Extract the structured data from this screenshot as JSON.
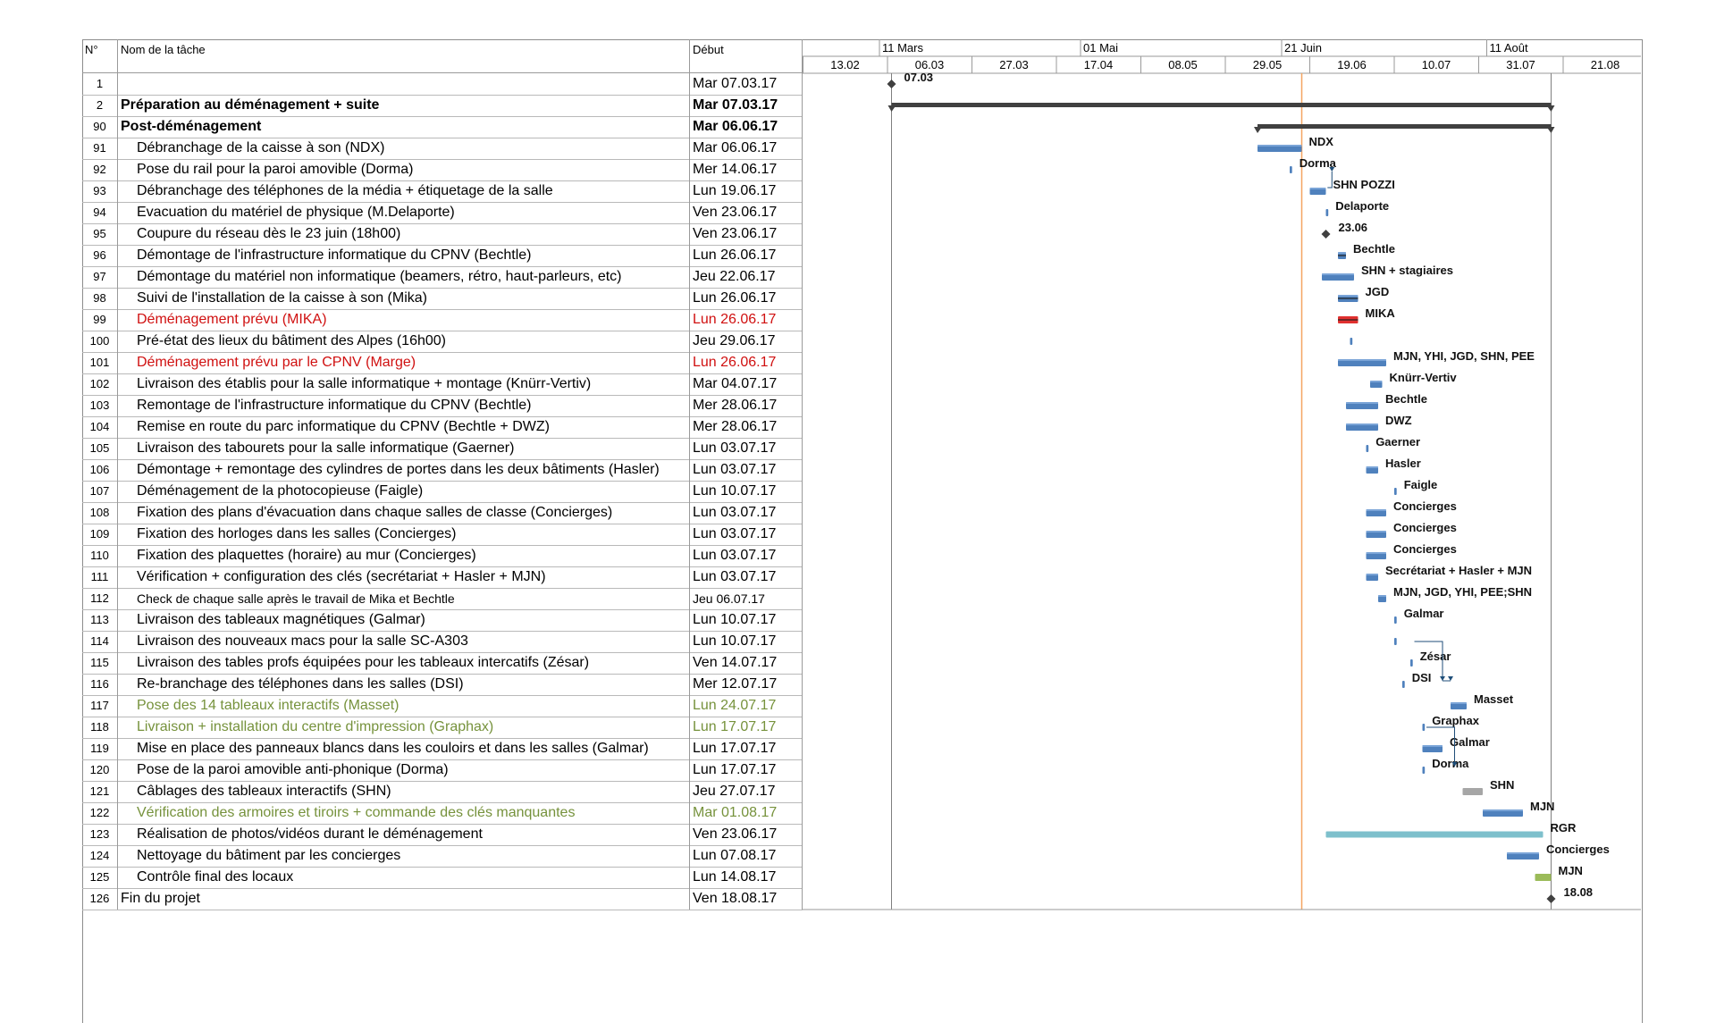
{
  "headers": {
    "num": "N°",
    "name": "Nom de la tâche",
    "start": "Début"
  },
  "timescale": {
    "top": [
      {
        "label": "11 Mars",
        "day": -2
      },
      {
        "label": "01 Mai",
        "day": 48
      },
      {
        "label": "21 Juin",
        "day": 98
      },
      {
        "label": "11 Août",
        "day": 149
      }
    ],
    "bottom": [
      "13.02",
      "06.03",
      "27.03",
      "17.04",
      "08.05",
      "29.05",
      "19.06",
      "10.07",
      "31.07",
      "21.08"
    ],
    "bottom_days": [
      -21,
      0,
      21,
      42,
      63,
      84,
      105,
      126,
      147,
      168
    ],
    "today_day": 103,
    "project_start_day": 1,
    "project_end_day": 165
  },
  "colors": {
    "task": "#4f81bd",
    "summary": "#404040",
    "critical": "#e0302f",
    "today": "#f4a460",
    "long": "#7ec0cc",
    "done": "#9bbb59",
    "gray": "#a6a6a6"
  },
  "tasks": [
    {
      "num": "1",
      "name": "",
      "start": "Mar 07.03.17",
      "style": "",
      "indent": false,
      "type": "milestone",
      "s": 1,
      "label": "07.03"
    },
    {
      "num": "2",
      "name": "Préparation au déménagement + suite",
      "start": "Mar 07.03.17",
      "style": "bold",
      "indent": false,
      "type": "summary",
      "s": 1,
      "e": 165
    },
    {
      "num": "90",
      "name": "Post-déménagement",
      "start": "Mar 06.06.17",
      "style": "bold",
      "indent": false,
      "type": "summary",
      "s": 92,
      "e": 165
    },
    {
      "num": "91",
      "name": "Débranchage de la caisse à son (NDX)",
      "start": "Mar 06.06.17",
      "style": "",
      "indent": true,
      "type": "task",
      "s": 92,
      "e": 103,
      "label": "NDX"
    },
    {
      "num": "92",
      "name": "Pose du rail pour la paroi amovible (Dorma)",
      "start": "Mer 14.06.17",
      "style": "",
      "indent": true,
      "type": "task",
      "s": 100,
      "e": 100.6,
      "label": "Dorma"
    },
    {
      "num": "93",
      "name": "Débranchage des téléphones de la média + étiquetage de la salle",
      "start": "Lun 19.06.17",
      "style": "",
      "indent": true,
      "type": "task",
      "s": 105,
      "e": 109,
      "label": "SHN POZZI"
    },
    {
      "num": "94",
      "name": "Evacuation du matériel de physique (M.Delaporte)",
      "start": "Ven 23.06.17",
      "style": "",
      "indent": true,
      "type": "task",
      "s": 109,
      "e": 109.6,
      "label": "Delaporte"
    },
    {
      "num": "95",
      "name": "Coupure du réseau dès le 23 juin (18h00)",
      "start": "Ven 23.06.17",
      "style": "",
      "indent": true,
      "type": "milestone",
      "s": 109,
      "label": "23.06"
    },
    {
      "num": "96",
      "name": "Démontage de l'infrastructure informatique du CPNV (Bechtle)",
      "start": "Lun 26.06.17",
      "style": "",
      "indent": true,
      "type": "task",
      "s": 112,
      "e": 114,
      "label": "Bechtle"
    },
    {
      "num": "97",
      "name": "Démontage du matériel non informatique (beamers, rétro, haut-parleurs, etc)",
      "start": "Jeu 22.06.17",
      "style": "",
      "indent": true,
      "type": "task",
      "s": 108,
      "e": 116,
      "label": "SHN + stagiaires"
    },
    {
      "num": "98",
      "name": "Suivi de l'installation de la caisse à son (Mika)",
      "start": "Lun 26.06.17",
      "style": "",
      "indent": true,
      "type": "task",
      "s": 112,
      "e": 117,
      "label": "JGD"
    },
    {
      "num": "99",
      "name": "Déménagement prévu (MIKA)",
      "start": "Lun 26.06.17",
      "style": "red",
      "indent": true,
      "type": "critical",
      "s": 112,
      "e": 117,
      "label": "MIKA"
    },
    {
      "num": "100",
      "name": "Pré-état des lieux du bâtiment des Alpes (16h00)",
      "start": "Jeu 29.06.17",
      "style": "",
      "indent": true,
      "type": "task",
      "s": 115,
      "e": 115.6,
      "label": ""
    },
    {
      "num": "101",
      "name": "Déménagement prévu par le CPNV (Marge)",
      "start": "Lun 26.06.17",
      "style": "red",
      "indent": true,
      "type": "task",
      "s": 112,
      "e": 124,
      "label": "MJN, YHI, JGD, SHN, PEE"
    },
    {
      "num": "102",
      "name": "Livraison des établis pour la salle informatique + montage (Knürr-Vertiv)",
      "start": "Mar 04.07.17",
      "style": "",
      "indent": true,
      "type": "task",
      "s": 120,
      "e": 123,
      "label": "Knürr-Vertiv"
    },
    {
      "num": "103",
      "name": "Remontage de l'infrastructure informatique du CPNV (Bechtle)",
      "start": "Mer 28.06.17",
      "style": "",
      "indent": true,
      "type": "task",
      "s": 114,
      "e": 122,
      "label": "Bechtle"
    },
    {
      "num": "104",
      "name": "Remise en route du parc informatique du CPNV (Bechtle + DWZ)",
      "start": "Mer 28.06.17",
      "style": "",
      "indent": true,
      "type": "task",
      "s": 114,
      "e": 122,
      "label": "DWZ"
    },
    {
      "num": "105",
      "name": "Livraison des tabourets pour la salle informatique (Gaerner)",
      "start": "Lun 03.07.17",
      "style": "",
      "indent": true,
      "type": "task",
      "s": 119,
      "e": 119.6,
      "label": "Gaerner"
    },
    {
      "num": "106",
      "name": "Démontage + remontage des cylindres de portes dans les deux bâtiments (Hasler)",
      "start": "Lun 03.07.17",
      "style": "",
      "indent": true,
      "type": "task",
      "s": 119,
      "e": 122,
      "label": "Hasler"
    },
    {
      "num": "107",
      "name": "Déménagement de la photocopieuse (Faigle)",
      "start": "Lun 10.07.17",
      "style": "",
      "indent": true,
      "type": "task",
      "s": 126,
      "e": 126.6,
      "label": "Faigle"
    },
    {
      "num": "108",
      "name": "Fixation des plans d'évacuation dans chaque salles de classe (Concierges)",
      "start": "Lun 03.07.17",
      "style": "",
      "indent": true,
      "type": "task",
      "s": 119,
      "e": 124,
      "label": "Concierges"
    },
    {
      "num": "109",
      "name": "Fixation des horloges dans les salles (Concierges)",
      "start": "Lun 03.07.17",
      "style": "",
      "indent": true,
      "type": "task",
      "s": 119,
      "e": 124,
      "label": "Concierges"
    },
    {
      "num": "110",
      "name": "Fixation des plaquettes (horaire) au mur (Concierges)",
      "start": "Lun 03.07.17",
      "style": "",
      "indent": true,
      "type": "task",
      "s": 119,
      "e": 124,
      "label": "Concierges"
    },
    {
      "num": "111",
      "name": "Vérification + configuration des clés (secrétariat + Hasler + MJN)",
      "start": "Lun 03.07.17",
      "style": "",
      "indent": true,
      "type": "task",
      "s": 119,
      "e": 122,
      "label": "Secrétariat + Hasler + MJN"
    },
    {
      "num": "112",
      "name": "Check de chaque salle après le travail de Mika et Bechtle",
      "start": "Jeu 06.07.17",
      "style": "small",
      "indent": true,
      "type": "task",
      "s": 122,
      "e": 124,
      "label": "MJN, JGD, YHI, PEE;SHN"
    },
    {
      "num": "113",
      "name": "Livraison des tableaux magnétiques (Galmar)",
      "start": "Lun 10.07.17",
      "style": "",
      "indent": true,
      "type": "task",
      "s": 126,
      "e": 126.6,
      "label": "Galmar"
    },
    {
      "num": "114",
      "name": "Livraison des nouveaux macs pour la salle SC-A303",
      "start": "Lun 10.07.17",
      "style": "",
      "indent": true,
      "type": "task",
      "s": 126,
      "e": 126.6,
      "label": ""
    },
    {
      "num": "115",
      "name": "Livraison des tables profs équipées pour les tableaux intercatifs (Zésar)",
      "start": "Ven 14.07.17",
      "style": "",
      "indent": true,
      "type": "task",
      "s": 130,
      "e": 130.6,
      "label": "Zésar"
    },
    {
      "num": "116",
      "name": "Re-branchage des téléphones dans les salles (DSI)",
      "start": "Mer 12.07.17",
      "style": "",
      "indent": true,
      "type": "task",
      "s": 128,
      "e": 128.6,
      "label": "DSI"
    },
    {
      "num": "117",
      "name": "Pose des 14 tableaux interactifs (Masset)",
      "start": "Lun 24.07.17",
      "style": "green",
      "indent": true,
      "type": "task",
      "s": 140,
      "e": 144,
      "label": "Masset"
    },
    {
      "num": "118",
      "name": "Livraison + installation du centre d'impression (Graphax)",
      "start": "Lun 17.07.17",
      "style": "green",
      "indent": true,
      "type": "task",
      "s": 133,
      "e": 133.6,
      "label": "Graphax"
    },
    {
      "num": "119",
      "name": "Mise en place des panneaux blancs dans les couloirs et dans les salles (Galmar)",
      "start": "Lun 17.07.17",
      "style": "",
      "indent": true,
      "type": "task",
      "s": 133,
      "e": 138,
      "label": "Galmar"
    },
    {
      "num": "120",
      "name": "Pose de la paroi amovible anti-phonique (Dorma)",
      "start": "Lun 17.07.17",
      "style": "",
      "indent": true,
      "type": "task",
      "s": 133,
      "e": 133.6,
      "label": "Dorma"
    },
    {
      "num": "121",
      "name": "Câblages des tableaux interactifs (SHN)",
      "start": "Jeu 27.07.17",
      "style": "",
      "indent": true,
      "type": "gray",
      "s": 143,
      "e": 148,
      "label": "SHN"
    },
    {
      "num": "122",
      "name": "Vérification des armoires et tiroirs + commande des clés manquantes",
      "start": "Mar 01.08.17",
      "style": "green",
      "indent": true,
      "type": "task",
      "s": 148,
      "e": 158,
      "label": "MJN"
    },
    {
      "num": "123",
      "name": "Réalisation de photos/vidéos durant le déménagement",
      "start": "Ven 23.06.17",
      "style": "",
      "indent": true,
      "type": "long",
      "s": 109,
      "e": 163,
      "label": "RGR"
    },
    {
      "num": "124",
      "name": "Nettoyage du bâtiment par les concierges",
      "start": "Lun 07.08.17",
      "style": "",
      "indent": true,
      "type": "task",
      "s": 154,
      "e": 162,
      "label": "Concierges"
    },
    {
      "num": "125",
      "name": "Contrôle final des locaux",
      "start": "Lun 14.08.17",
      "style": "",
      "indent": true,
      "type": "done",
      "s": 161,
      "e": 165,
      "label": "MJN"
    },
    {
      "num": "126",
      "name": "Fin du projet",
      "start": "Ven 18.08.17",
      "style": "",
      "indent": false,
      "type": "milestone",
      "s": 165,
      "label": "18.08"
    }
  ]
}
